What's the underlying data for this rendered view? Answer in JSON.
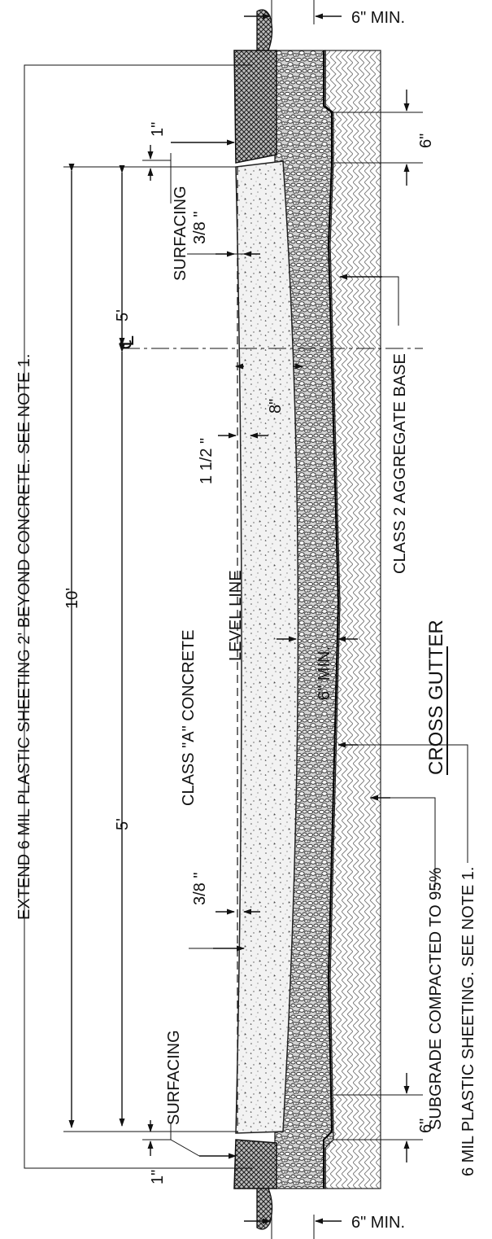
{
  "title": "CROSS GUTTER",
  "labels": {
    "extend_sheeting": "EXTEND 6 MIL PLASTIC SHEETING 2' BEYOND CONCRETE.  SEE NOTE 1.",
    "surfacing_top": "SURFACING",
    "surfacing_bottom": "SURFACING",
    "class_a_concrete": "CLASS \"A\" CONCRETE",
    "level_line": "LEVEL LINE",
    "aggregate_base": "CLASS 2 AGGREGATE BASE",
    "subgrade": "SUBGRADE COMPACTED TO 95%",
    "plastic_sheeting": "6 MIL PLASTIC SHEETING.  SEE NOTE 1.",
    "centerline": "℄"
  },
  "dimensions": {
    "six_min_top": "6\" MIN.",
    "six_min_bottom": "6\" MIN.",
    "six_top": "6\"",
    "six_bottom": "6\"",
    "one_inch_top": "1\"",
    "one_inch_bottom": "1\"",
    "three_eighths_top": "3/8 \"",
    "three_eighths_bottom": "3/8 \"",
    "ten_ft": "10'",
    "five_ft_top": "5'",
    "five_ft_bottom": "5'",
    "eight_in": "8\"",
    "one_half": "1 1/2 \"",
    "six_min_mid": "6\" MIN."
  }
}
